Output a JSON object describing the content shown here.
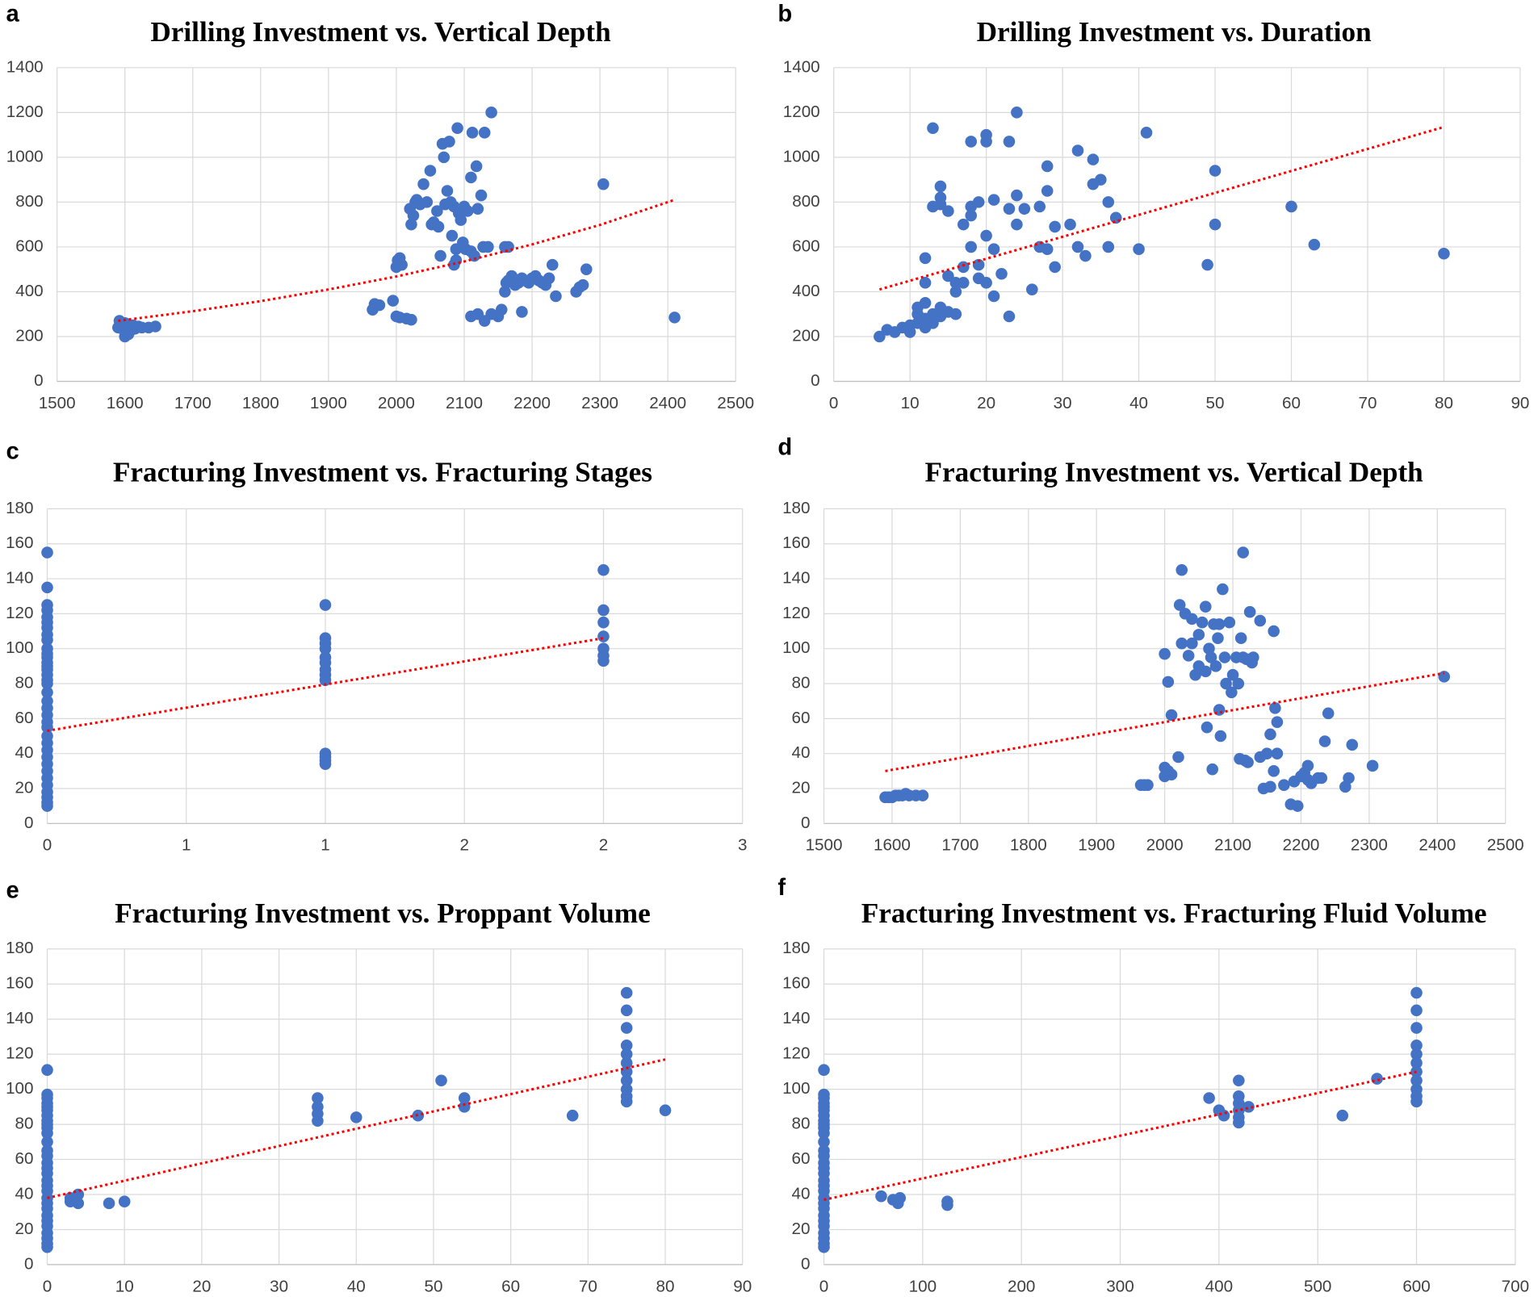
{
  "chart_data": [
    {
      "type": "scatter",
      "label": "a",
      "title": "Drilling Investment vs. Vertical Depth",
      "color": "#4472c4",
      "grid": true,
      "x": [
        1590,
        1595,
        1598,
        1600,
        1602,
        1605,
        1608,
        1610,
        1612,
        1615,
        1620,
        1625,
        1635,
        1645,
        1600,
        1592,
        1965,
        1968,
        1975,
        1995,
        2000,
        2005,
        2015,
        2022,
        2000,
        2002,
        2005,
        2008,
        2020,
        2022,
        2025,
        2028,
        2030,
        2035,
        2040,
        2045,
        2050,
        2052,
        2055,
        2060,
        2062,
        2065,
        2068,
        2070,
        2072,
        2075,
        2078,
        2080,
        2082,
        2085,
        2088,
        2090,
        2092,
        2095,
        2098,
        2100,
        2102,
        2105,
        2110,
        2112,
        2115,
        2118,
        2120,
        2125,
        2128,
        2130,
        2135,
        2140,
        2085,
        2088,
        2110,
        2110,
        2120,
        2130,
        2140,
        2150,
        2155,
        2160,
        2162,
        2165,
        2170,
        2175,
        2180,
        2185,
        2190,
        2195,
        2200,
        2205,
        2210,
        2215,
        2220,
        2225,
        2230,
        2235,
        2185,
        2265,
        2270,
        2275,
        2280,
        2305,
        2410,
        2160,
        2165
      ],
      "y": [
        240,
        250,
        230,
        260,
        220,
        210,
        240,
        230,
        250,
        235,
        245,
        240,
        240,
        245,
        200,
        270,
        320,
        345,
        340,
        360,
        290,
        285,
        280,
        275,
        510,
        540,
        550,
        520,
        770,
        700,
        740,
        800,
        810,
        790,
        880,
        800,
        940,
        700,
        710,
        760,
        690,
        560,
        1060,
        1000,
        790,
        850,
        1070,
        800,
        650,
        780,
        590,
        1130,
        750,
        720,
        620,
        780,
        590,
        760,
        910,
        1110,
        560,
        960,
        770,
        830,
        600,
        1110,
        600,
        1200,
        520,
        540,
        580,
        290,
        300,
        270,
        300,
        290,
        320,
        400,
        440,
        450,
        470,
        430,
        440,
        460,
        450,
        440,
        460,
        470,
        450,
        440,
        430,
        460,
        520,
        380,
        310,
        400,
        420,
        430,
        500,
        880,
        285,
        600,
        600
      ],
      "trendline": {
        "color": "#ff0000",
        "x": [
          1590,
          1700,
          1800,
          1900,
          2000,
          2100,
          2200,
          2300,
          2410
        ],
        "y": [
          270,
          313,
          358,
          410,
          468,
          535,
          611,
          698,
          810
        ]
      },
      "xlim": [
        1500,
        2500
      ],
      "xticks": [
        1500,
        1600,
        1700,
        1800,
        1900,
        2000,
        2100,
        2200,
        2300,
        2400,
        2500
      ],
      "ylim": [
        0,
        1400
      ],
      "yticks": [
        0,
        200,
        400,
        600,
        800,
        1000,
        1200,
        1400
      ]
    },
    {
      "type": "scatter",
      "label": "b",
      "title": "Drilling Investment vs. Duration",
      "color": "#4472c4",
      "grid": true,
      "x": [
        6,
        7,
        8,
        9,
        10,
        10,
        11,
        11,
        11,
        12,
        12,
        12,
        13,
        13,
        14,
        15,
        16,
        14,
        12,
        12,
        13,
        14,
        13,
        14,
        14,
        15,
        15,
        16,
        16,
        17,
        17,
        17,
        18,
        18,
        18,
        18,
        19,
        19,
        19,
        20,
        20,
        20,
        20,
        21,
        21,
        21,
        22,
        23,
        23,
        23,
        24,
        24,
        24,
        25,
        26,
        27,
        27,
        28,
        28,
        28,
        29,
        29,
        31,
        32,
        32,
        33,
        34,
        34,
        35,
        36,
        36,
        37,
        40,
        41,
        49,
        50,
        50,
        60,
        63,
        80
      ],
      "y": [
        200,
        230,
        220,
        240,
        250,
        220,
        300,
        260,
        330,
        280,
        240,
        350,
        260,
        300,
        290,
        310,
        300,
        330,
        550,
        440,
        780,
        790,
        1130,
        820,
        870,
        760,
        470,
        400,
        440,
        510,
        700,
        440,
        600,
        740,
        780,
        1070,
        800,
        520,
        460,
        1100,
        650,
        1070,
        440,
        590,
        810,
        380,
        480,
        770,
        290,
        1070,
        1200,
        700,
        830,
        770,
        410,
        780,
        600,
        590,
        850,
        960,
        690,
        510,
        700,
        1030,
        600,
        560,
        990,
        880,
        900,
        800,
        600,
        730,
        590,
        1110,
        520,
        940,
        700,
        780,
        610,
        570
      ],
      "trendline": {
        "color": "#ff0000",
        "x": [
          6,
          80
        ],
        "y": [
          410,
          1135
        ]
      },
      "xlim": [
        0,
        90
      ],
      "xticks": [
        0,
        10,
        20,
        30,
        40,
        50,
        60,
        70,
        80,
        90
      ],
      "ylim": [
        0,
        1400
      ],
      "yticks": [
        0,
        200,
        400,
        600,
        800,
        1000,
        1200,
        1400
      ]
    },
    {
      "type": "scatter",
      "label": "c",
      "title": "Fracturing Investment vs. Fracturing Stages",
      "color": "#4472c4",
      "grid": true,
      "x": [
        0,
        0,
        0,
        0,
        0,
        0,
        0,
        0,
        0,
        0,
        0,
        0,
        0,
        0,
        0,
        0,
        0,
        0,
        0,
        0,
        0,
        0,
        0,
        0,
        0,
        0,
        0,
        0,
        0,
        0,
        0,
        0,
        0,
        0,
        0,
        0,
        1,
        1,
        1,
        1,
        1,
        1,
        1,
        1,
        1,
        1,
        1,
        1,
        1,
        2,
        2,
        2,
        2,
        2,
        2,
        2
      ],
      "y": [
        155,
        135,
        125,
        122,
        118,
        115,
        112,
        108,
        105,
        100,
        97,
        95,
        92,
        90,
        88,
        85,
        82,
        80,
        75,
        70,
        66,
        62,
        58,
        55,
        50,
        46,
        42,
        38,
        34,
        30,
        26,
        22,
        18,
        15,
        12,
        10,
        125,
        106,
        103,
        100,
        95,
        92,
        88,
        85,
        82,
        40,
        38,
        36,
        34,
        145,
        122,
        115,
        107,
        100,
        96,
        93
      ],
      "trendline": {
        "color": "#ff0000",
        "x": [
          0,
          2
        ],
        "y": [
          53,
          106
        ]
      },
      "xlim": [
        0,
        2.5
      ],
      "xticks": [
        0,
        {
          "value": 0.5,
          "label": "1"
        },
        1,
        {
          "value": 1.5,
          "label": "2"
        },
        2,
        {
          "value": 2.5,
          "label": "3"
        }
      ],
      "ylim": [
        0,
        180
      ],
      "yticks": [
        0,
        20,
        40,
        60,
        80,
        100,
        120,
        140,
        160,
        180
      ]
    },
    {
      "type": "scatter",
      "label": "d",
      "title": "Fracturing Investment vs. Vertical Depth",
      "color": "#4472c4",
      "grid": true,
      "x": [
        1590,
        1595,
        1600,
        1605,
        1610,
        1615,
        1620,
        1625,
        1635,
        1645,
        1965,
        1970,
        1975,
        2000,
        2000,
        2000,
        2005,
        2005,
        2010,
        2010,
        2020,
        2022,
        2025,
        2025,
        2030,
        2035,
        2040,
        2040,
        2045,
        2050,
        2050,
        2055,
        2060,
        2060,
        2062,
        2065,
        2068,
        2070,
        2072,
        2075,
        2078,
        2080,
        2080,
        2082,
        2085,
        2088,
        2090,
        2095,
        2098,
        2100,
        2105,
        2108,
        2110,
        2112,
        2115,
        2115,
        2118,
        2120,
        2122,
        2125,
        2128,
        2130,
        2140,
        2140,
        2145,
        2150,
        2155,
        2155,
        2160,
        2160,
        2162,
        2165,
        2165,
        2175,
        2185,
        2190,
        2195,
        2200,
        2205,
        2210,
        2210,
        2215,
        2225,
        2230,
        2235,
        2240,
        2265,
        2270,
        2275,
        2305,
        2410
      ],
      "y": [
        15,
        15,
        15,
        16,
        16,
        16,
        17,
        16,
        16,
        16,
        22,
        22,
        22,
        97,
        32,
        27,
        81,
        30,
        28,
        62,
        38,
        125,
        145,
        103,
        120,
        96,
        117,
        103,
        85,
        108,
        90,
        115,
        124,
        87,
        55,
        100,
        95,
        31,
        114,
        90,
        106,
        114,
        65,
        50,
        134,
        95,
        80,
        115,
        75,
        85,
        95,
        80,
        37,
        106,
        155,
        95,
        36,
        94,
        35,
        121,
        92,
        95,
        38,
        116,
        20,
        40,
        51,
        21,
        110,
        30,
        66,
        58,
        40,
        22,
        11,
        24,
        10,
        27,
        29,
        33,
        25,
        23,
        26,
        26,
        47,
        63,
        21,
        26,
        45,
        33,
        84
      ],
      "trendline": {
        "color": "#ff0000",
        "x": [
          1590,
          2410
        ],
        "y": [
          30,
          86
        ]
      },
      "xlim": [
        1500,
        2500
      ],
      "xticks": [
        1500,
        1600,
        1700,
        1800,
        1900,
        2000,
        2100,
        2200,
        2300,
        2400,
        2500
      ],
      "ylim": [
        0,
        180
      ],
      "yticks": [
        0,
        20,
        40,
        60,
        80,
        100,
        120,
        140,
        160,
        180
      ]
    },
    {
      "type": "scatter",
      "label": "e",
      "title": "Fracturing Investment vs. Proppant Volume",
      "color": "#4472c4",
      "grid": true,
      "x": [
        0,
        0,
        0,
        0,
        0,
        0,
        0,
        0,
        0,
        0,
        0,
        0,
        0,
        0,
        0,
        0,
        0,
        0,
        0,
        0,
        0,
        0,
        0,
        0,
        0,
        0,
        0,
        0,
        0,
        0,
        3,
        3,
        4,
        4,
        8,
        10,
        35,
        35,
        35,
        35,
        40,
        48,
        51,
        54,
        54,
        68,
        75,
        75,
        75,
        75,
        75,
        75,
        75,
        75,
        75,
        75,
        75,
        80
      ],
      "y": [
        111,
        97,
        95,
        92,
        90,
        88,
        85,
        82,
        80,
        78,
        75,
        70,
        65,
        62,
        58,
        55,
        52,
        48,
        45,
        42,
        38,
        35,
        32,
        28,
        25,
        22,
        18,
        15,
        12,
        10,
        38,
        36,
        40,
        35,
        35,
        36,
        95,
        90,
        86,
        82,
        84,
        85,
        105,
        95,
        90,
        85,
        155,
        145,
        135,
        125,
        120,
        115,
        110,
        105,
        100,
        96,
        93,
        88
      ],
      "trendline": {
        "color": "#ff0000",
        "x": [
          0,
          80
        ],
        "y": [
          38,
          117
        ]
      },
      "xlim": [
        0,
        90
      ],
      "xticks": [
        0,
        10,
        20,
        30,
        40,
        50,
        60,
        70,
        80,
        90
      ],
      "ylim": [
        0,
        180
      ],
      "yticks": [
        0,
        20,
        40,
        60,
        80,
        100,
        120,
        140,
        160,
        180
      ]
    },
    {
      "type": "scatter",
      "label": "f",
      "title": "Fracturing Investment vs. Fracturing Fluid Volume",
      "color": "#4472c4",
      "grid": true,
      "x": [
        0,
        0,
        0,
        0,
        0,
        0,
        0,
        0,
        0,
        0,
        0,
        0,
        0,
        0,
        0,
        0,
        0,
        0,
        0,
        0,
        0,
        0,
        0,
        0,
        0,
        0,
        0,
        0,
        0,
        0,
        58,
        70,
        75,
        77,
        125,
        125,
        390,
        400,
        405,
        420,
        420,
        420,
        420,
        420,
        420,
        430,
        525,
        560,
        600,
        600,
        600,
        600,
        600,
        600,
        600,
        600,
        600,
        600,
        600
      ],
      "y": [
        111,
        97,
        95,
        92,
        90,
        88,
        85,
        82,
        80,
        78,
        75,
        70,
        65,
        62,
        58,
        55,
        52,
        48,
        45,
        42,
        38,
        35,
        32,
        28,
        25,
        22,
        18,
        15,
        12,
        10,
        39,
        37,
        35,
        38,
        36,
        34,
        95,
        88,
        85,
        105,
        96,
        92,
        88,
        84,
        81,
        90,
        85,
        106,
        155,
        145,
        135,
        125,
        120,
        115,
        110,
        105,
        100,
        96,
        93
      ],
      "trendline": {
        "color": "#ff0000",
        "x": [
          0,
          600
        ],
        "y": [
          37,
          110
        ]
      },
      "xlim": [
        0,
        700
      ],
      "xticks": [
        0,
        100,
        200,
        300,
        400,
        500,
        600,
        700
      ],
      "ylim": [
        0,
        180
      ],
      "yticks": [
        0,
        20,
        40,
        60,
        80,
        100,
        120,
        140,
        160,
        180
      ]
    }
  ]
}
